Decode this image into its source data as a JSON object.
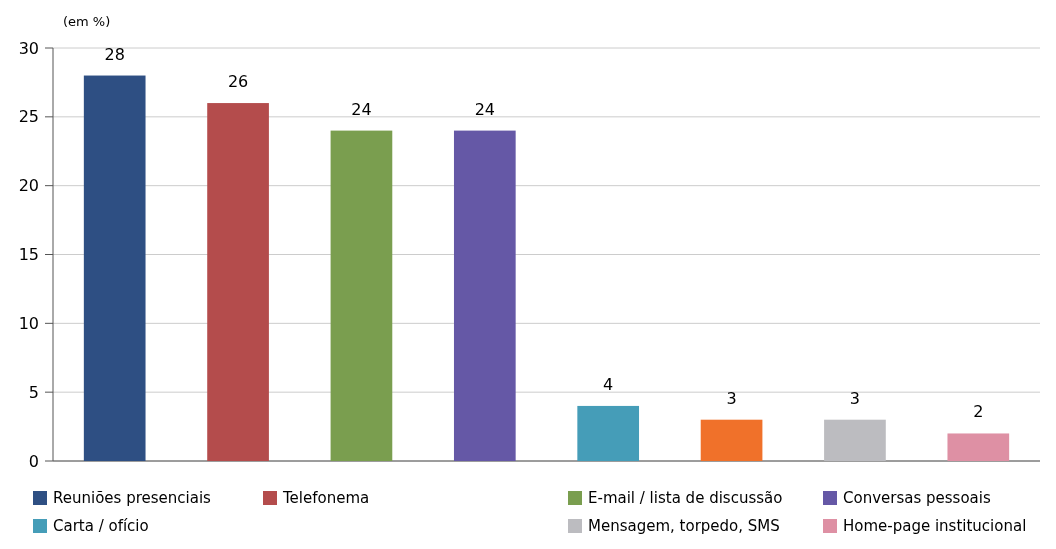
{
  "chart_data": {
    "type": "bar",
    "ylabel": "(em %)",
    "categories": [
      null,
      null,
      null,
      null,
      null,
      null,
      null,
      null
    ],
    "series": [
      {
        "name": "Reuniões presenciais",
        "color": "#2e4f83",
        "values": [
          28,
          null,
          null,
          null,
          null,
          null,
          null,
          null
        ]
      },
      {
        "name": "Telefonema",
        "color": "#b44c4c",
        "values": [
          null,
          26,
          null,
          null,
          null,
          null,
          null,
          null
        ]
      },
      {
        "name": "E-mail / lista de  discussão",
        "color": "#7a9e4f",
        "values": [
          null,
          null,
          24,
          null,
          null,
          null,
          null,
          null
        ]
      },
      {
        "name": "Conversas pessoais",
        "color": "#6558a6",
        "values": [
          null,
          null,
          null,
          24,
          null,
          null,
          null,
          null
        ]
      },
      {
        "name": "Carta / ofício",
        "color": "#459db8",
        "values": [
          null,
          null,
          null,
          null,
          4,
          null,
          null,
          null
        ]
      },
      {
        "color": "#f0712a",
        "values": [
          null,
          null,
          null,
          null,
          null,
          3,
          null,
          null
        ]
      },
      {
        "name": "Mensagem, torpedo, SMS",
        "color": "#bcbcc0",
        "values": [
          null,
          null,
          null,
          null,
          null,
          null,
          3,
          null
        ]
      },
      {
        "name": "Home-page institucional",
        "color": "#de90a4",
        "values": [
          null,
          null,
          null,
          null,
          null,
          null,
          null,
          2
        ]
      }
    ],
    "ylim": [
      0,
      30
    ],
    "yticks": [
      0,
      5,
      10,
      15,
      20,
      25,
      30
    ],
    "grid": "y",
    "data_labels": true,
    "legend": "bottom"
  }
}
